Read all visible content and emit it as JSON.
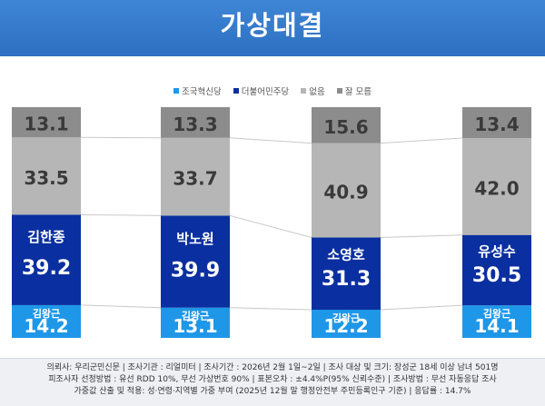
{
  "header": {
    "title": "가상대결"
  },
  "colors": {
    "jokuk": "#1f97e8",
    "minju": "#0a2fa0",
    "none": "#b6b6b6",
    "dontknow": "#8c8c8c",
    "banner": "#2f72c4"
  },
  "chart_data": {
    "type": "bar",
    "stacked": true,
    "title": "가상대결",
    "categories": [
      "김한종 vs 김왕근",
      "박노원 vs 김왕근",
      "소영호 vs 김왕근",
      "유성수 vs 김왕근"
    ],
    "legend": [
      "조국혁신당",
      "더불어민주당",
      "없음",
      "잘 모름"
    ],
    "series": [
      {
        "name": "조국혁신당",
        "values": [
          14.2,
          13.1,
          12.2,
          14.1
        ],
        "candidate_labels": [
          "김왕근",
          "김왕근",
          "김왕근",
          "김왕근"
        ]
      },
      {
        "name": "더불어민주당",
        "values": [
          39.2,
          39.9,
          31.3,
          30.5
        ],
        "candidate_labels": [
          "김한종",
          "박노원",
          "소영호",
          "유성수"
        ]
      },
      {
        "name": "없음",
        "values": [
          33.5,
          33.7,
          40.9,
          42.0
        ]
      },
      {
        "name": "잘 모름",
        "values": [
          13.1,
          13.3,
          15.6,
          13.4
        ]
      }
    ],
    "value_labels": [
      [
        "14.2",
        "39.2",
        "33.5",
        "13.1"
      ],
      [
        "13.1",
        "39.9",
        "33.7",
        "13.3"
      ],
      [
        "12.2",
        "31.3",
        "40.9",
        "15.6"
      ],
      [
        "14.1",
        "30.5",
        "42.0",
        "13.4"
      ]
    ],
    "ylim": [
      0,
      100
    ]
  },
  "footer": {
    "line1": "의뢰사: 우리군민신문 | 조사기관 : 리얼미터 | 조사기간 : 2026년 2월 1일~2일 | 조사 대상 및 크기: 장성군 18세 이상 남녀 501명",
    "line2": "피조사자 선정방법 : 유선 RDD 10%, 무선 가상번호 90% | 표본오차 : ±4.4%P(95% 신뢰수준) | 조사방법 : 무선 자동응답 조사",
    "line3": "가중값 산출 및 적용: 성·연령·지역별 가중 부여 (2025년 12월 말 행정안전부 주민등록인구 기준) | 응답률 : 14.7%"
  }
}
